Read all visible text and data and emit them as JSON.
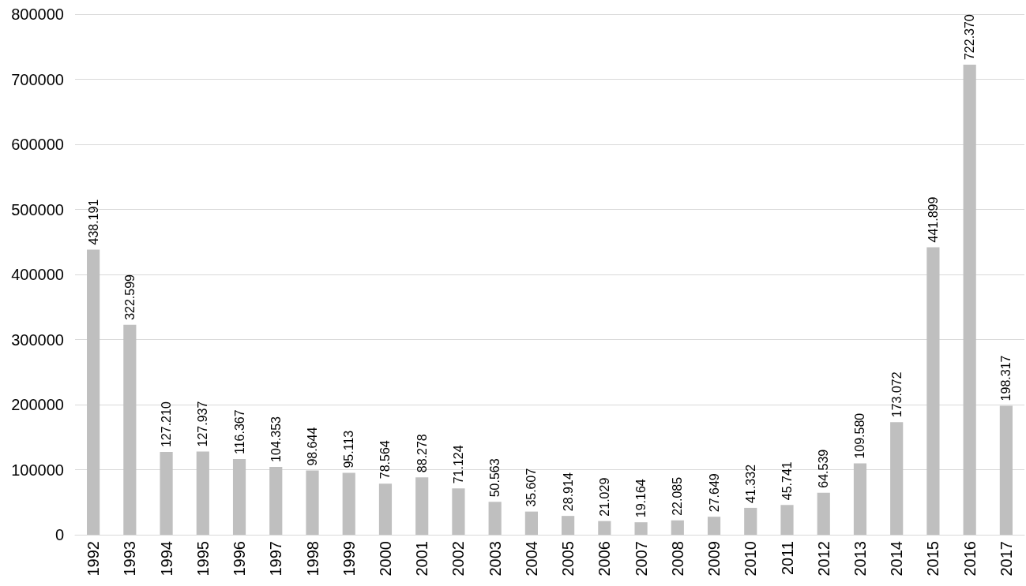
{
  "chart_data": {
    "type": "bar",
    "categories": [
      "1992",
      "1993",
      "1994",
      "1995",
      "1996",
      "1997",
      "1998",
      "1999",
      "2000",
      "2001",
      "2002",
      "2003",
      "2004",
      "2005",
      "2006",
      "2007",
      "2008",
      "2009",
      "2010",
      "2011",
      "2012",
      "2013",
      "2014",
      "2015",
      "2016",
      "2017"
    ],
    "values": [
      438191,
      322599,
      127210,
      127937,
      116367,
      104353,
      98644,
      95113,
      78564,
      88278,
      71124,
      50563,
      35607,
      28914,
      21029,
      19164,
      22085,
      27649,
      41332,
      45741,
      64539,
      109580,
      173072,
      441899,
      722370,
      198317
    ],
    "value_labels": [
      "438.191",
      "322.599",
      "127.210",
      "127.937",
      "116.367",
      "104.353",
      "98.644",
      "95.113",
      "78.564",
      "88.278",
      "71.124",
      "50.563",
      "35.607",
      "28.914",
      "21.029",
      "19.164",
      "22.085",
      "27.649",
      "41.332",
      "45.741",
      "64.539",
      "109.580",
      "173.072",
      "441.899",
      "722.370",
      "198.317"
    ],
    "color": "#bfbfbf",
    "ylim": [
      0,
      800000
    ],
    "yticks": [
      0,
      100000,
      200000,
      300000,
      400000,
      500000,
      600000,
      700000,
      800000
    ],
    "grid": "y"
  }
}
